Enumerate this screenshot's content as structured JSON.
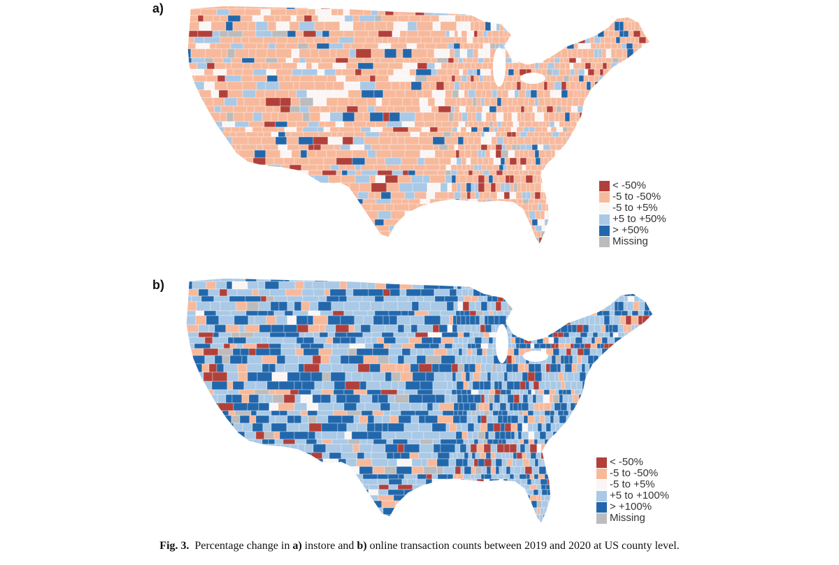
{
  "panels": [
    {
      "label": "a)",
      "measure": "instore transaction counts",
      "legend": [
        {
          "label": "< -50%",
          "color": "#b2403a"
        },
        {
          "label": "-5 to -50%",
          "color": "#f7b99c"
        },
        {
          "label": "-5 to +5%",
          "color": "#fbf6f6"
        },
        {
          "label": "+5 to +50%",
          "color": "#a9c9e6"
        },
        {
          "label": "> +50%",
          "color": "#2267ab"
        },
        {
          "label": "Missing",
          "color": "#bcbcbc"
        }
      ],
      "category_mix": [
        0.05,
        0.66,
        0.1,
        0.11,
        0.05,
        0.03
      ]
    },
    {
      "label": "b)",
      "measure": "online transaction counts",
      "legend": [
        {
          "label": "< -50%",
          "color": "#b2403a"
        },
        {
          "label": "-5 to -50%",
          "color": "#f7b99c"
        },
        {
          "label": "-5 to +5%",
          "color": "#fbf6f6"
        },
        {
          "label": "+5 to +100%",
          "color": "#a9c9e6"
        },
        {
          "label": "> +100%",
          "color": "#2267ab"
        },
        {
          "label": "Missing",
          "color": "#bcbcbc"
        }
      ],
      "category_mix": [
        0.06,
        0.12,
        0.03,
        0.42,
        0.34,
        0.03
      ]
    }
  ],
  "caption": {
    "prefix": "Fig. 3.",
    "part1": "Percentage change in ",
    "a_label": "a)",
    "part2": " instore and ",
    "b_label": "b)",
    "part3": " online transaction counts between 2019 and 2020 at US county level."
  }
}
